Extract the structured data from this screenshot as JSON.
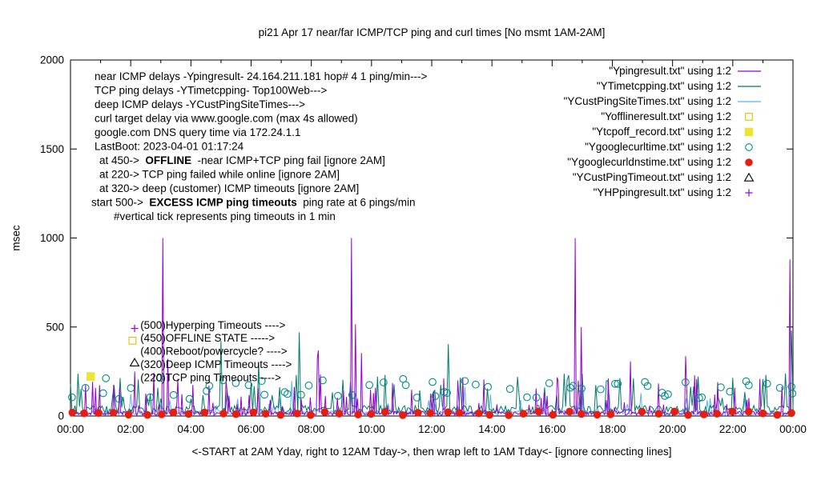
{
  "chart_data": {
    "type": "line",
    "title": "pi21 Apr 17  near/far ICMP/TCP ping and curl times [No msmt 1AM-2AM]",
    "xlabel": "<-START at 2AM Yday, right to 12AM Tday->, then wrap left to 1AM Tday<- [ignore connecting lines]",
    "ylabel": "msec",
    "xlim_hours": [
      0,
      24
    ],
    "ylim": [
      0,
      2000
    ],
    "x_tick_labels": [
      "00:00",
      "02:00",
      "04:00",
      "06:00",
      "08:00",
      "10:00",
      "12:00",
      "14:00",
      "16:00",
      "18:00",
      "20:00",
      "22:00",
      "00:00"
    ],
    "y_tick_values": [
      0,
      500,
      1000,
      1500,
      2000
    ],
    "grid": false,
    "legend_position": "top-right",
    "series": [
      {
        "label": "\"Ypingresult.txt\" using 1:2",
        "kind": "line",
        "color": "#9400D3",
        "texture": {
          "seed": 11,
          "step_min": 2,
          "base": [
            4,
            26
          ],
          "spike_p": 0.1,
          "spike": [
            45,
            220
          ],
          "rare_p": 0.012,
          "rare": [
            220,
            400
          ]
        },
        "major_spikes": [
          {
            "h": 2.12,
            "ms": 250
          },
          {
            "h": 3.05,
            "ms": 1000
          },
          {
            "h": 9.33,
            "ms": 1000
          },
          {
            "h": 9.47,
            "ms": 515
          },
          {
            "h": 16.78,
            "ms": 1000
          },
          {
            "h": 16.98,
            "ms": 500
          },
          {
            "h": 23.9,
            "ms": 880
          }
        ]
      },
      {
        "label": "\"YTimetcpping.txt\" using 1:2",
        "kind": "line",
        "color": "#007A66",
        "texture": {
          "seed": 23,
          "step_min": 3,
          "base": [
            14,
            60
          ],
          "spike_p": 0.08,
          "spike": [
            80,
            240
          ],
          "rare_p": 0.01,
          "rare": [
            240,
            430
          ]
        },
        "major_spikes": [
          {
            "h": 7.62,
            "ms": 470
          },
          {
            "h": 23.95,
            "ms": 480
          }
        ]
      },
      {
        "label": "\"YCustPingSiteTimes.txt\" using 1:2",
        "kind": "line",
        "color": "#56B4E9",
        "texture": {
          "seed": 37,
          "step_min": 3,
          "base": [
            4,
            32
          ],
          "spike_p": 0.05,
          "spike": [
            45,
            130
          ],
          "rare_p": 0.006,
          "rare": [
            130,
            230
          ]
        },
        "major_spikes": []
      },
      {
        "label": "\"Yofflineresult.txt\" using 1:2",
        "kind": "points",
        "marker": "open-square",
        "color": "#E0C000",
        "points": []
      },
      {
        "label": "\"Ytcpoff_record.txt\" using 1:2",
        "kind": "points",
        "marker": "filled-square",
        "color": "#EDE437",
        "points": [
          {
            "h": 0.67,
            "ms": 222
          }
        ]
      },
      {
        "label": "\"Ygooglecurltime.txt\" using 1:2",
        "kind": "points",
        "marker": "open-circle",
        "color": "#008B8B",
        "scatter": {
          "seed": 44,
          "interval_min": 30,
          "ms": [
            95,
            215
          ],
          "jitter_min": 10,
          "double_p": 0.3,
          "skip_p": 0.08
        }
      },
      {
        "label": "\"Ygooglecurldnstime.txt\" using 1:2",
        "kind": "points",
        "marker": "filled-circle",
        "color": "#E51E10",
        "scatter": {
          "seed": 55,
          "interval_min": 30,
          "ms": [
            4,
            26
          ],
          "jitter_min": 5,
          "double_p": 0,
          "skip_p": 0.04
        }
      },
      {
        "label": "\"YCustPingTimeout.txt\" using 1:2",
        "kind": "points",
        "marker": "open-triangle",
        "color": "#000000",
        "points": []
      },
      {
        "label": "\"YHPpingresult.txt\" using 1:2",
        "kind": "points",
        "marker": "plus",
        "color": "#9400D3",
        "points": []
      }
    ],
    "annotations": {
      "info_lines": [
        {
          "ind": 2,
          "seg": [
            {
              "t": "near ICMP delays -Ypingresult- 24.164.211.181 hop# 4 1 ping/min--->"
            }
          ]
        },
        {
          "ind": 2,
          "seg": [
            {
              "t": "TCP ping delays -YTimetcpping- Top100Web--->"
            }
          ]
        },
        {
          "ind": 2,
          "seg": [
            {
              "t": "deep ICMP delays -YCustPingSiteTimes--->"
            }
          ]
        },
        {
          "ind": 2,
          "seg": [
            {
              "t": "curl target delay via www.google.com (max 4s allowed)"
            }
          ]
        },
        {
          "ind": 2,
          "seg": [
            {
              "t": "google.com DNS query time via 172.24.1.1"
            }
          ]
        },
        {
          "ind": 2,
          "seg": [
            {
              "t": "LastBoot: 2023-04-01 01:17:24"
            }
          ]
        },
        {
          "ind": 8,
          "seg": [
            {
              "t": "at 450->  "
            },
            {
              "t": "OFFLINE",
              "b": 1
            },
            {
              "t": "  -near ICMP+TCP ping fail [ignore 2AM]"
            }
          ]
        },
        {
          "ind": 8,
          "seg": [
            {
              "t": "at 220-> TCP ping failed while online [ignore 2AM]"
            }
          ]
        },
        {
          "ind": 8,
          "seg": [
            {
              "t": "at 320-> deep (customer) ICMP timeouts [ignore 2AM]"
            }
          ]
        },
        {
          "ind": -2,
          "seg": [
            {
              "t": "start 500->  "
            },
            {
              "t": "EXCESS ICMP ping timeouts",
              "b": 1
            },
            {
              "t": "  ping rate at 6 pings/min"
            }
          ]
        },
        {
          "ind": 26,
          "seg": [
            {
              "t": "#vertical tick represents ping timeouts in 1 min"
            }
          ]
        }
      ],
      "level_labels": {
        "x_h": 2.32,
        "items": [
          {
            "ms": 508,
            "text": "(500)Hyperping Timeouts ---->"
          },
          {
            "ms": 436,
            "text": "(450)OFFLINE STATE ----->"
          },
          {
            "ms": 362,
            "text": "(400)Reboot/powercycle? ---->"
          },
          {
            "ms": 288,
            "text": "(320)Deep ICMP Timeouts ---->"
          },
          {
            "ms": 214,
            "text": "(220)TCP ping Timeouts ---->"
          }
        ]
      },
      "marker_examples": [
        {
          "marker": "plus",
          "color": "#9400D3",
          "h": 2.13,
          "ms": 492
        },
        {
          "marker": "open-square",
          "color": "#E0C000",
          "h": 2.06,
          "ms": 423
        },
        {
          "marker": "open-triangle",
          "color": "#000000",
          "h": 2.13,
          "ms": 300
        }
      ]
    }
  }
}
